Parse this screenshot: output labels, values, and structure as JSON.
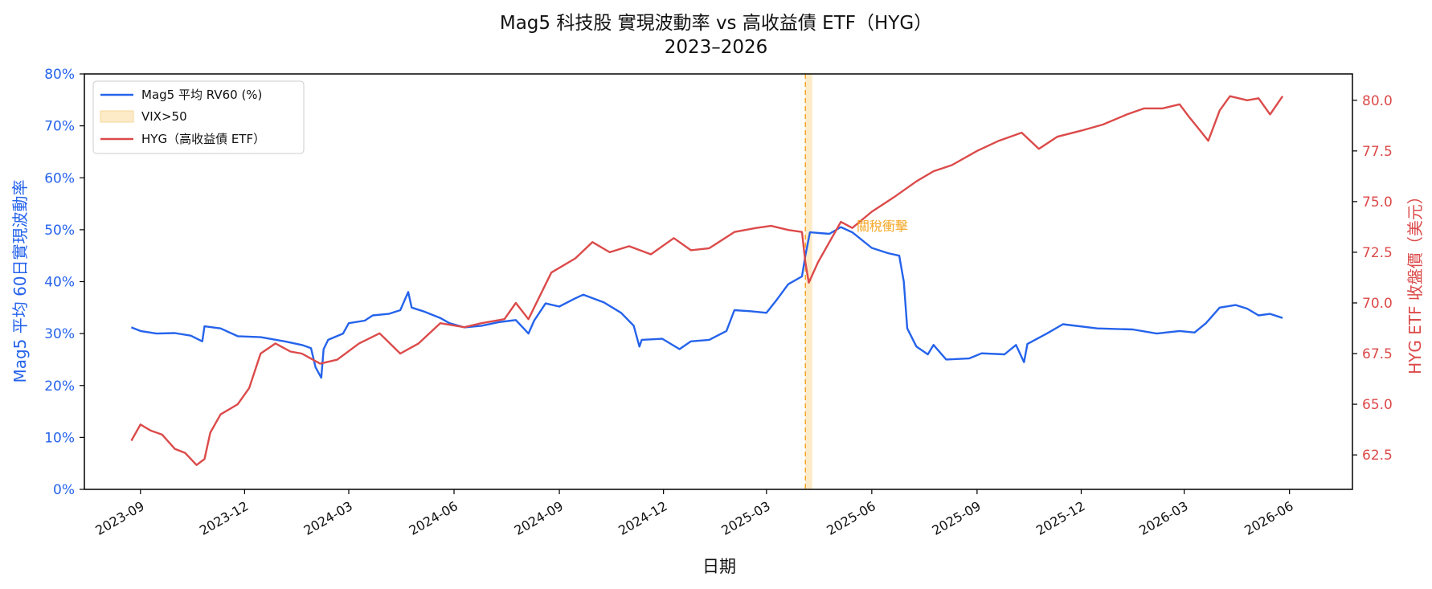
{
  "chart_data": {
    "type": "line",
    "title": "Mag5 科技股 實現波動率 vs 高收益債 ETF（HYG）",
    "subtitle": "2023–2026",
    "xlabel": "日期",
    "ylabel_left": "Mag5 平均 60日實現波動率",
    "ylabel_right": "HYG ETF 收盤價（美元）",
    "x_range": [
      "2023-07-14",
      "2026-07-26"
    ],
    "ylim_left": [
      0,
      80
    ],
    "ylim_right": [
      60.8,
      81.3
    ],
    "x_ticks": [
      "2023-09",
      "2023-12",
      "2024-03",
      "2024-06",
      "2024-09",
      "2024-12",
      "2025-03",
      "2025-06",
      "2025-09",
      "2025-12",
      "2026-03",
      "2026-06"
    ],
    "y_ticks_left": [
      "0%",
      "10%",
      "20%",
      "30%",
      "40%",
      "50%",
      "60%",
      "70%",
      "80%"
    ],
    "y_ticks_right": [
      "62.5",
      "65.0",
      "67.5",
      "70.0",
      "72.5",
      "75.0",
      "77.5",
      "80.0"
    ],
    "legend_position": "top-left",
    "grid": false,
    "legend": [
      "Mag5 平均 RV60 (%)",
      "VIX>50",
      "HYG（高收益債 ETF）"
    ],
    "annotation": "關稅衝擊",
    "shaded_region": {
      "label": "VIX>50",
      "start": "2025-04-04",
      "end": "2025-04-10",
      "line_date": "2025-04-04",
      "color": "#f5a623"
    },
    "series": [
      {
        "name": "Mag5 平均 RV60 (%)",
        "axis": "left",
        "color": "#2563eb",
        "points": [
          [
            "2023-08-24",
            31.2
          ],
          [
            "2023-09-01",
            30.5
          ],
          [
            "2023-09-15",
            30.0
          ],
          [
            "2023-10-01",
            30.1
          ],
          [
            "2023-10-15",
            29.6
          ],
          [
            "2023-10-25",
            28.5
          ],
          [
            "2023-10-27",
            31.4
          ],
          [
            "2023-11-10",
            31.0
          ],
          [
            "2023-11-25",
            29.5
          ],
          [
            "2023-12-15",
            29.3
          ],
          [
            "2024-01-05",
            28.5
          ],
          [
            "2024-01-20",
            27.8
          ],
          [
            "2024-01-28",
            27.2
          ],
          [
            "2024-02-01",
            23.5
          ],
          [
            "2024-02-06",
            21.5
          ],
          [
            "2024-02-08",
            27.0
          ],
          [
            "2024-02-12",
            28.8
          ],
          [
            "2024-02-25",
            30.0
          ],
          [
            "2024-03-01",
            32.0
          ],
          [
            "2024-03-15",
            32.5
          ],
          [
            "2024-03-22",
            33.5
          ],
          [
            "2024-04-05",
            33.8
          ],
          [
            "2024-04-15",
            34.5
          ],
          [
            "2024-04-22",
            38.0
          ],
          [
            "2024-04-25",
            35.0
          ],
          [
            "2024-05-05",
            34.3
          ],
          [
            "2024-05-20",
            33.0
          ],
          [
            "2024-05-28",
            32.0
          ],
          [
            "2024-06-10",
            31.2
          ],
          [
            "2024-06-25",
            31.5
          ],
          [
            "2024-07-10",
            32.2
          ],
          [
            "2024-07-25",
            32.6
          ],
          [
            "2024-08-05",
            30.0
          ],
          [
            "2024-08-10",
            32.5
          ],
          [
            "2024-08-20",
            35.8
          ],
          [
            "2024-09-01",
            35.2
          ],
          [
            "2024-09-15",
            36.8
          ],
          [
            "2024-09-22",
            37.5
          ],
          [
            "2024-10-10",
            36.0
          ],
          [
            "2024-10-25",
            34.0
          ],
          [
            "2024-11-05",
            31.5
          ],
          [
            "2024-11-10",
            27.5
          ],
          [
            "2024-11-12",
            28.8
          ],
          [
            "2024-11-30",
            29.0
          ],
          [
            "2024-12-15",
            27.0
          ],
          [
            "2024-12-25",
            28.5
          ],
          [
            "2025-01-10",
            28.8
          ],
          [
            "2025-01-25",
            30.5
          ],
          [
            "2025-02-01",
            34.5
          ],
          [
            "2025-02-15",
            34.3
          ],
          [
            "2025-03-01",
            34.0
          ],
          [
            "2025-03-10",
            36.5
          ],
          [
            "2025-03-20",
            39.5
          ],
          [
            "2025-04-01",
            41.0
          ],
          [
            "2025-04-04",
            45.0
          ],
          [
            "2025-04-08",
            49.5
          ],
          [
            "2025-04-25",
            49.2
          ],
          [
            "2025-05-05",
            50.5
          ],
          [
            "2025-05-15",
            49.5
          ],
          [
            "2025-06-01",
            46.5
          ],
          [
            "2025-06-15",
            45.5
          ],
          [
            "2025-06-25",
            45.0
          ],
          [
            "2025-06-29",
            40.0
          ],
          [
            "2025-07-02",
            31.0
          ],
          [
            "2025-07-10",
            27.5
          ],
          [
            "2025-07-20",
            26.0
          ],
          [
            "2025-07-25",
            27.8
          ],
          [
            "2025-08-05",
            25.0
          ],
          [
            "2025-08-25",
            25.2
          ],
          [
            "2025-09-05",
            26.2
          ],
          [
            "2025-09-25",
            26.0
          ],
          [
            "2025-10-05",
            27.8
          ],
          [
            "2025-10-12",
            24.5
          ],
          [
            "2025-10-15",
            28.0
          ],
          [
            "2025-11-01",
            30.0
          ],
          [
            "2025-11-15",
            31.8
          ],
          [
            "2025-12-15",
            31.0
          ],
          [
            "2026-01-15",
            30.8
          ],
          [
            "2026-02-05",
            30.0
          ],
          [
            "2026-02-25",
            30.5
          ],
          [
            "2026-03-10",
            30.2
          ],
          [
            "2026-03-20",
            32.0
          ],
          [
            "2026-04-01",
            35.0
          ],
          [
            "2026-04-15",
            35.5
          ],
          [
            "2026-04-25",
            34.8
          ],
          [
            "2026-05-05",
            33.5
          ],
          [
            "2026-05-15",
            33.8
          ],
          [
            "2026-05-26",
            33.0
          ]
        ]
      },
      {
        "name": "HYG（高收益債 ETF）",
        "axis": "right",
        "color": "#dc4a4a",
        "points": [
          [
            "2023-08-24",
            63.2
          ],
          [
            "2023-09-01",
            64.0
          ],
          [
            "2023-09-10",
            63.7
          ],
          [
            "2023-09-20",
            63.5
          ],
          [
            "2023-10-01",
            62.8
          ],
          [
            "2023-10-10",
            62.6
          ],
          [
            "2023-10-20",
            62.0
          ],
          [
            "2023-10-27",
            62.3
          ],
          [
            "2023-11-01",
            63.6
          ],
          [
            "2023-11-10",
            64.5
          ],
          [
            "2023-11-25",
            65.0
          ],
          [
            "2023-12-05",
            65.8
          ],
          [
            "2023-12-15",
            67.5
          ],
          [
            "2023-12-28",
            68.0
          ],
          [
            "2024-01-10",
            67.6
          ],
          [
            "2024-01-20",
            67.5
          ],
          [
            "2024-02-05",
            67.0
          ],
          [
            "2024-02-20",
            67.2
          ],
          [
            "2024-03-10",
            68.0
          ],
          [
            "2024-03-28",
            68.5
          ],
          [
            "2024-04-15",
            67.5
          ],
          [
            "2024-05-01",
            68.0
          ],
          [
            "2024-05-20",
            69.0
          ],
          [
            "2024-06-10",
            68.8
          ],
          [
            "2024-06-25",
            69.0
          ],
          [
            "2024-07-15",
            69.2
          ],
          [
            "2024-07-25",
            70.0
          ],
          [
            "2024-08-05",
            69.2
          ],
          [
            "2024-08-25",
            71.5
          ],
          [
            "2024-09-15",
            72.2
          ],
          [
            "2024-09-30",
            73.0
          ],
          [
            "2024-10-15",
            72.5
          ],
          [
            "2024-11-01",
            72.8
          ],
          [
            "2024-11-20",
            72.4
          ],
          [
            "2024-12-10",
            73.2
          ],
          [
            "2024-12-25",
            72.6
          ],
          [
            "2025-01-10",
            72.7
          ],
          [
            "2025-02-01",
            73.5
          ],
          [
            "2025-02-20",
            73.7
          ],
          [
            "2025-03-05",
            73.8
          ],
          [
            "2025-03-20",
            73.6
          ],
          [
            "2025-04-01",
            73.5
          ],
          [
            "2025-04-04",
            72.0
          ],
          [
            "2025-04-07",
            71.0
          ],
          [
            "2025-04-15",
            72.0
          ],
          [
            "2025-04-25",
            73.0
          ],
          [
            "2025-05-05",
            74.0
          ],
          [
            "2025-05-15",
            73.7
          ],
          [
            "2025-06-01",
            74.5
          ],
          [
            "2025-06-20",
            75.2
          ],
          [
            "2025-07-10",
            76.0
          ],
          [
            "2025-07-25",
            76.5
          ],
          [
            "2025-08-10",
            76.8
          ],
          [
            "2025-09-01",
            77.5
          ],
          [
            "2025-09-20",
            78.0
          ],
          [
            "2025-10-10",
            78.4
          ],
          [
            "2025-10-25",
            77.6
          ],
          [
            "2025-11-10",
            78.2
          ],
          [
            "2025-12-01",
            78.5
          ],
          [
            "2025-12-20",
            78.8
          ],
          [
            "2026-01-10",
            79.3
          ],
          [
            "2026-01-25",
            79.6
          ],
          [
            "2026-02-10",
            79.6
          ],
          [
            "2026-02-25",
            79.8
          ],
          [
            "2026-03-05",
            79.2
          ],
          [
            "2026-03-15",
            78.5
          ],
          [
            "2026-03-22",
            78.0
          ],
          [
            "2026-04-01",
            79.5
          ],
          [
            "2026-04-10",
            80.2
          ],
          [
            "2026-04-25",
            80.0
          ],
          [
            "2026-05-05",
            80.1
          ],
          [
            "2026-05-15",
            79.3
          ],
          [
            "2026-05-26",
            80.2
          ]
        ]
      }
    ]
  }
}
